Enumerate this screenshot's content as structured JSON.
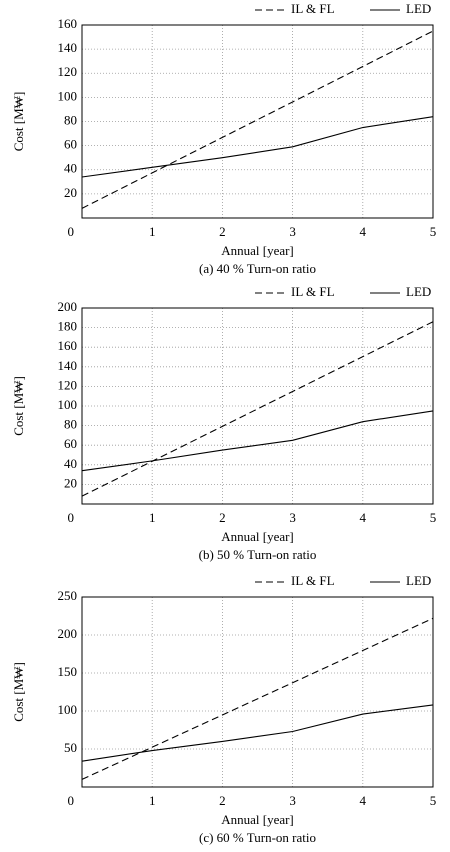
{
  "chart_data": [
    {
      "type": "line",
      "caption": "(a)  40 % Turn-on ratio",
      "x_label": "Annual [year]",
      "y_label": "Cost [M₩]",
      "x": [
        0,
        1,
        2,
        3,
        4,
        5
      ],
      "xlim": [
        0,
        5
      ],
      "xticks": [
        0,
        1,
        2,
        3,
        4,
        5
      ],
      "ylim": [
        0,
        160
      ],
      "yticks": [
        20,
        40,
        60,
        80,
        100,
        120,
        140,
        160
      ],
      "grid": true,
      "series": [
        {
          "name": "IL & FL",
          "color": "#000000",
          "dashed": true,
          "values": [
            8,
            37.4,
            66.8,
            96.2,
            125.6,
            155
          ]
        },
        {
          "name": "LED",
          "color": "#000000",
          "dashed": false,
          "values": [
            34,
            42,
            50,
            59,
            75,
            84
          ]
        }
      ]
    },
    {
      "type": "line",
      "caption": "(b)  50 % Turn-on ratio",
      "x_label": "Annual [year]",
      "y_label": "Cost [M₩]",
      "x": [
        0,
        1,
        2,
        3,
        4,
        5
      ],
      "xlim": [
        0,
        5
      ],
      "xticks": [
        0,
        1,
        2,
        3,
        4,
        5
      ],
      "ylim": [
        0,
        200
      ],
      "yticks": [
        20,
        40,
        60,
        80,
        100,
        120,
        140,
        160,
        180,
        200
      ],
      "grid": true,
      "series": [
        {
          "name": "IL & FL",
          "color": "#000000",
          "dashed": true,
          "values": [
            8,
            43.6,
            79.2,
            114.8,
            150.4,
            186
          ]
        },
        {
          "name": "LED",
          "color": "#000000",
          "dashed": false,
          "values": [
            34,
            44,
            55,
            65,
            84,
            95
          ]
        }
      ]
    },
    {
      "type": "line",
      "caption": "(c)  60 % Turn-on ratio",
      "x_label": "Annual [year]",
      "y_label": "Cost [M₩]",
      "x": [
        0,
        1,
        2,
        3,
        4,
        5
      ],
      "xlim": [
        0,
        5
      ],
      "xticks": [
        0,
        1,
        2,
        3,
        4,
        5
      ],
      "ylim": [
        0,
        250
      ],
      "yticks": [
        50,
        100,
        150,
        200,
        250
      ],
      "grid": true,
      "series": [
        {
          "name": "IL & FL",
          "color": "#000000",
          "dashed": true,
          "values": [
            10,
            52.4,
            94.8,
            137.2,
            179.6,
            222
          ]
        },
        {
          "name": "LED",
          "color": "#000000",
          "dashed": false,
          "values": [
            34,
            48,
            60,
            73,
            96,
            108
          ]
        }
      ]
    }
  ]
}
